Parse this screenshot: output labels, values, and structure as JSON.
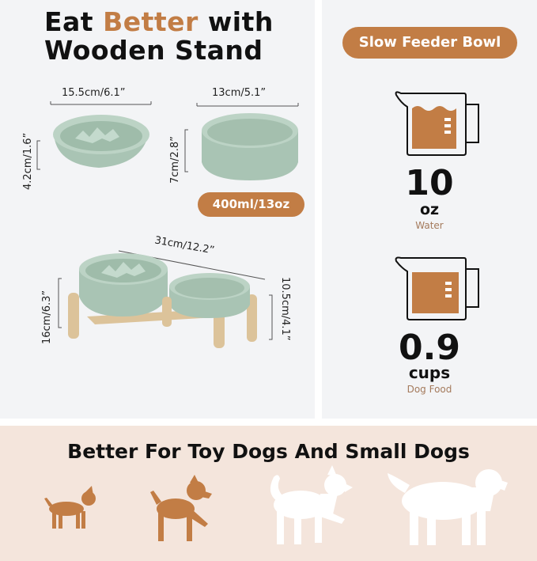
{
  "left": {
    "title_prefix": "Eat ",
    "title_accent": "Better",
    "title_suffix": " with",
    "title_line2": "Wooden Stand",
    "slow_bowl_width": "15.5cm/6.1”",
    "slow_bowl_height": "4.2cm/1.6”",
    "water_bowl_width": "13cm/5.1”",
    "water_bowl_height": "7cm/2.8”",
    "capacity_badge": "400ml/13oz",
    "stand_width": "31cm/12.2”",
    "stand_height_left": "16cm/6.3”",
    "stand_height_right": "10.5cm/4.1”"
  },
  "right": {
    "badge": "Slow Feeder Bowl",
    "water_value": "10",
    "water_unit": "oz",
    "water_label": "Water",
    "food_value": "0.9",
    "food_unit": "cups",
    "food_label": "Dog Food"
  },
  "bottom": {
    "title": "Better For Toy Dogs And Small Dogs",
    "dogs": [
      "toy-dog-icon",
      "small-dog-icon",
      "medium-dog-icon",
      "large-dog-icon"
    ]
  },
  "colors": {
    "accent": "#c27d45",
    "bowl": "#a9c4b4",
    "stand": "#dcc39a",
    "bottom_bg": "#f4e5dc"
  }
}
